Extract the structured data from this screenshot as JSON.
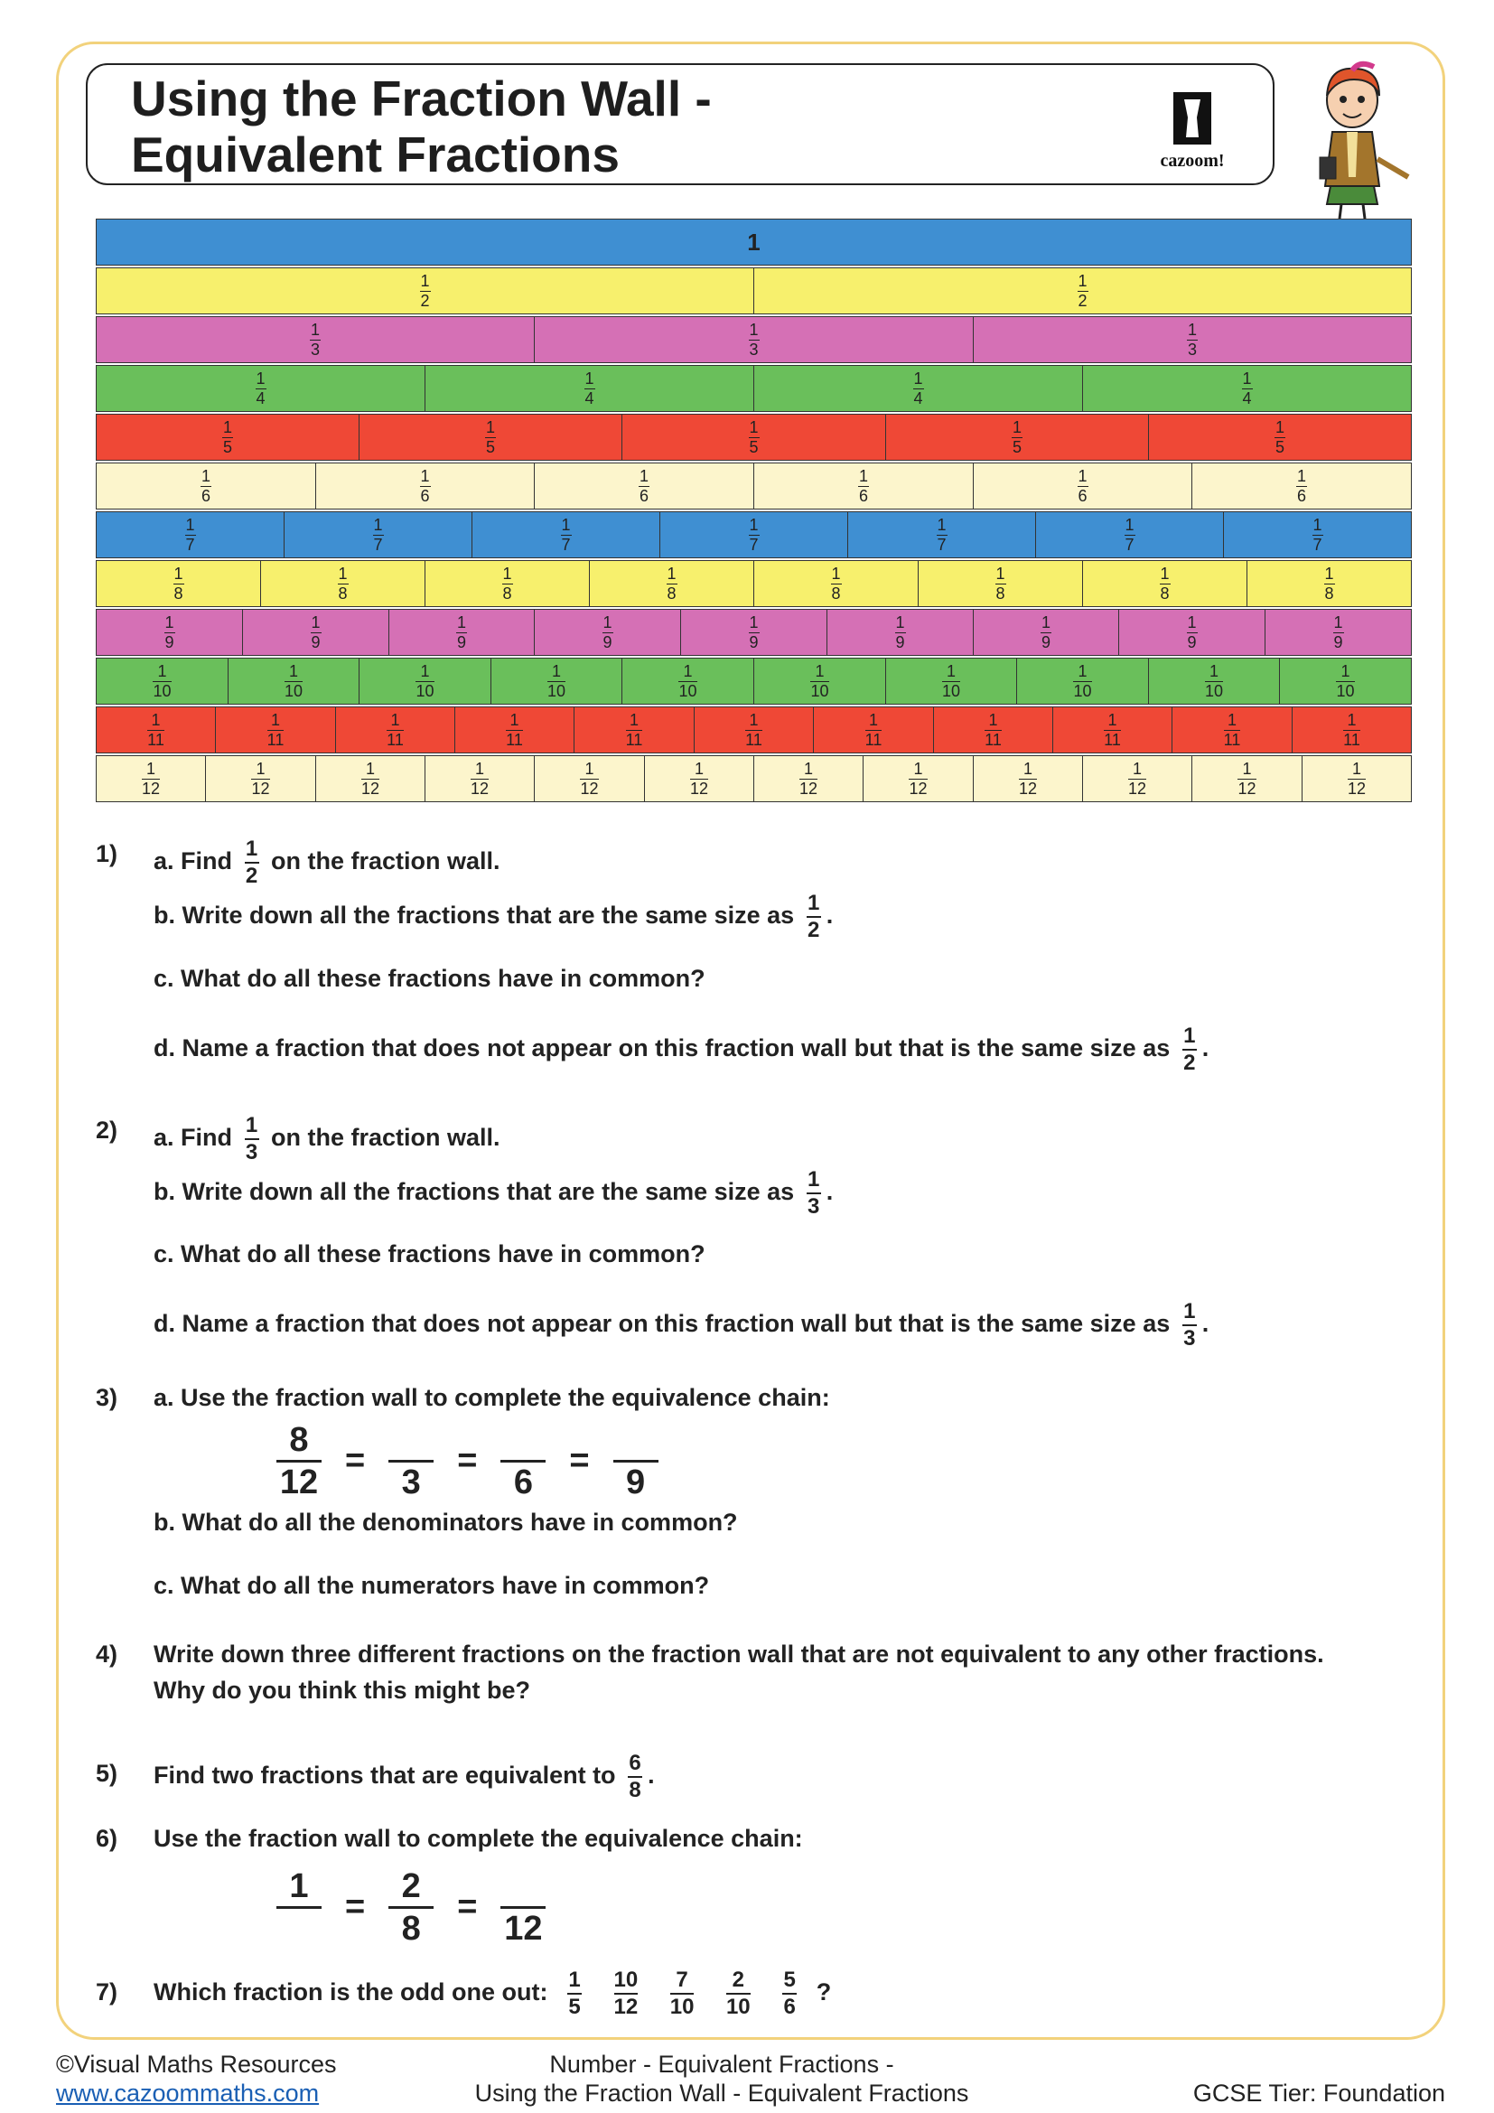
{
  "header": {
    "title_line1": "Using the Fraction Wall -",
    "title_line2": "Equivalent Fractions",
    "logo_text": "cazoom!"
  },
  "wall": {
    "top_label": "1",
    "colors": [
      "#3f8fd2",
      "#f7f06d",
      "#d570b5",
      "#6abf5b",
      "#ef4836",
      "#fcf5cc",
      "#3f8fd2",
      "#f7f06d",
      "#d570b5",
      "#6abf5b",
      "#ef4836",
      "#fcf5cc"
    ],
    "rows": [
      {
        "denominator": 1,
        "numerator": "1",
        "label": "1"
      },
      {
        "denominator": 2,
        "numerator": "1",
        "label": "2"
      },
      {
        "denominator": 3,
        "numerator": "1",
        "label": "3"
      },
      {
        "denominator": 4,
        "numerator": "1",
        "label": "4"
      },
      {
        "denominator": 5,
        "numerator": "1",
        "label": "5"
      },
      {
        "denominator": 6,
        "numerator": "1",
        "label": "6"
      },
      {
        "denominator": 7,
        "numerator": "1",
        "label": "7"
      },
      {
        "denominator": 8,
        "numerator": "1",
        "label": "8"
      },
      {
        "denominator": 9,
        "numerator": "1",
        "label": "9"
      },
      {
        "denominator": 10,
        "numerator": "1",
        "label": "10"
      },
      {
        "denominator": 11,
        "numerator": "1",
        "label": "11"
      },
      {
        "denominator": 12,
        "numerator": "1",
        "label": "12"
      }
    ]
  },
  "questions": {
    "q1": {
      "num": "1)",
      "a_pre": "a. Find",
      "a_frac": [
        "1",
        "2"
      ],
      "a_post": "on the fraction wall.",
      "b_pre": "b. Write down all the fractions that are the same size as",
      "b_frac": [
        "1",
        "2"
      ],
      "b_post": ".",
      "c": "c. What do all these fractions have in common?",
      "d_pre": "d. Name a fraction that does not appear on this fraction wall but that is the same size as",
      "d_frac": [
        "1",
        "2"
      ],
      "d_post": "."
    },
    "q2": {
      "num": "2)",
      "a_pre": "a. Find",
      "a_frac": [
        "1",
        "3"
      ],
      "a_post": "on the fraction wall.",
      "b_pre": "b. Write down all the fractions that are the same size as",
      "b_frac": [
        "1",
        "3"
      ],
      "b_post": ".",
      "c": "c. What do all these fractions have in common?",
      "d_pre": "d. Name a fraction that does not appear on this fraction wall but that is the same size as",
      "d_frac": [
        "1",
        "3"
      ],
      "d_post": "."
    },
    "q3": {
      "num": "3)",
      "a": "a. Use the fraction wall to complete the equivalence chain:",
      "chain": [
        [
          "8",
          "12"
        ],
        [
          "",
          "3"
        ],
        [
          "",
          "6"
        ],
        [
          "",
          "9"
        ]
      ],
      "eq": "=",
      "b": "b. What do all the denominators have in common?",
      "c": "c. What do all the numerators have in common?"
    },
    "q4": {
      "num": "4)",
      "line1": "Write down three different fractions on the fraction wall that are not equivalent to any other fractions.",
      "line2": "Why do you think this might be?"
    },
    "q5": {
      "num": "5)",
      "pre": "Find two fractions that are equivalent to",
      "frac": [
        "6",
        "8"
      ],
      "post": "."
    },
    "q6": {
      "num": "6)",
      "text": "Use the fraction wall to complete the equivalence chain:",
      "chain": [
        [
          "1",
          ""
        ],
        [
          "2",
          "8"
        ],
        [
          "",
          "12"
        ]
      ],
      "eq": "="
    },
    "q7": {
      "num": "7)",
      "pre": "Which fraction is the odd one out:",
      "fracs": [
        [
          "1",
          "5"
        ],
        [
          "10",
          "12"
        ],
        [
          "7",
          "10"
        ],
        [
          "2",
          "10"
        ],
        [
          "5",
          "6"
        ]
      ],
      "post": "?"
    }
  },
  "footer": {
    "copyright": "©Visual Maths Resources",
    "url": "www.cazoommaths.com",
    "center_line1": "Number - Equivalent Fractions -",
    "center_line2": "Using the Fraction Wall - Equivalent Fractions",
    "tier": "GCSE Tier: Foundation"
  }
}
